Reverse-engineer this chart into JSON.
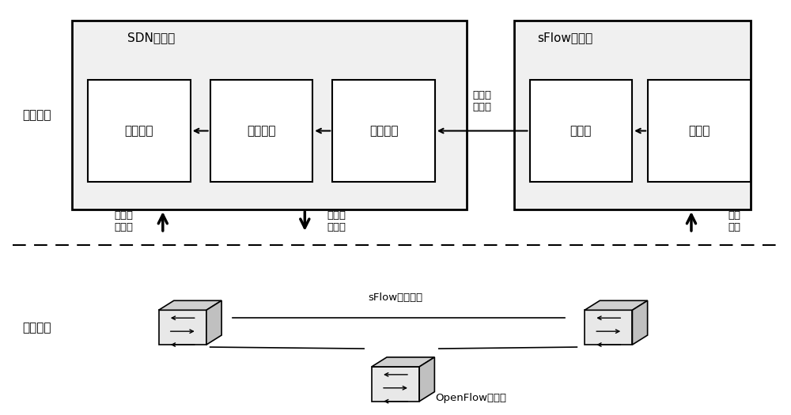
{
  "bg_color": "#ffffff",
  "fig_width": 10.0,
  "fig_height": 5.25,
  "dpi": 100,
  "control_plane_label": "控制平面",
  "data_plane_label": "数据平面",
  "sdn_controller_label": "SDN控制器",
  "sflow_collector_label": "sFlow采集器",
  "box_labels": [
    "大流识别",
    "流表读取",
    "任务构建",
    "流分析",
    "流采集"
  ],
  "arrow_label_1": "疑似大\n流信息",
  "arrow_label_2": "读取统\n计数据",
  "arrow_label_3": "配置测\n量流表",
  "arrow_label_4": "采样\n流量",
  "sflow_proxy_label": "sFlow测量代理",
  "openflow_label": "OpenFlow交换机",
  "dashed_line_y": 0.47
}
